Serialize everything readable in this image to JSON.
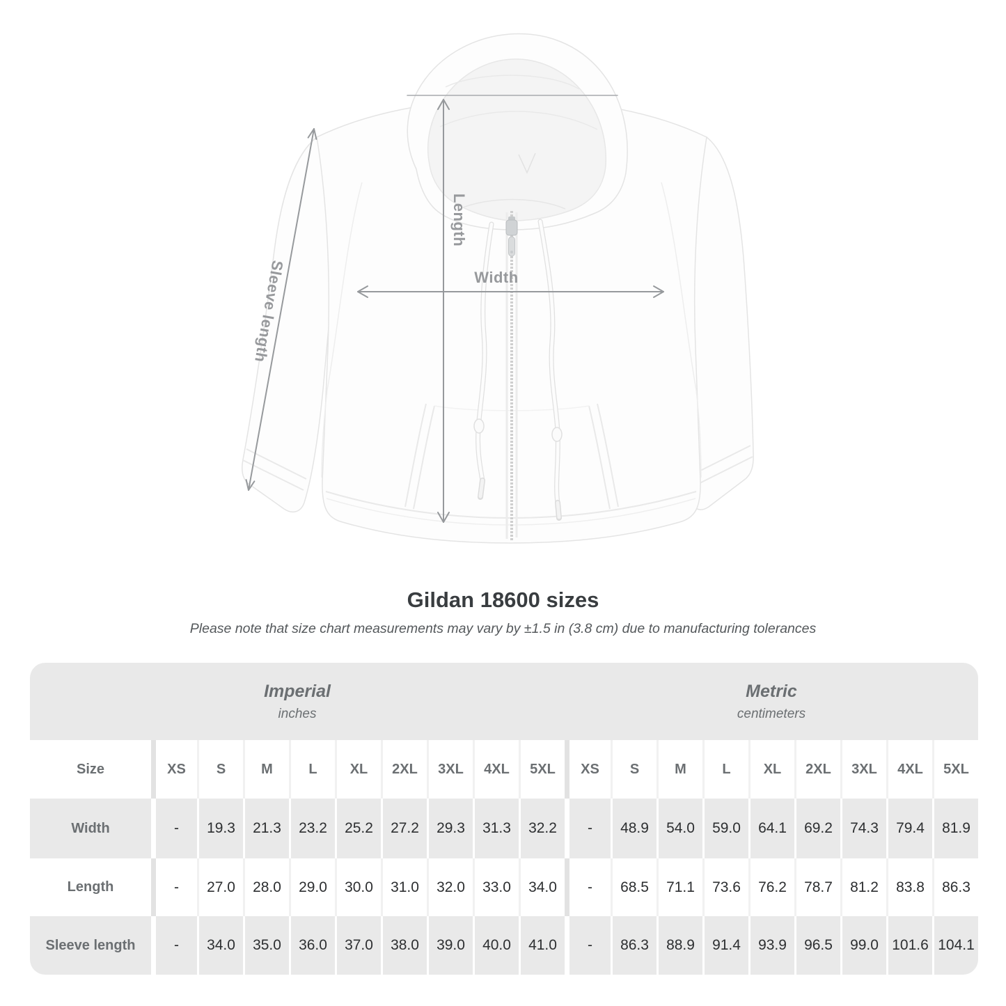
{
  "diagram": {
    "length_label": "Length",
    "width_label": "Width",
    "sleeve_label": "Sleeve length"
  },
  "heading": {
    "title": "Gildan 18600 sizes",
    "note": "Please note that size chart measurements may vary by ±1.5 in (3.8 cm) due to manufacturing tolerances"
  },
  "table": {
    "size_col_header": "Size",
    "sections": [
      {
        "name": "Imperial",
        "unit": "inches"
      },
      {
        "name": "Metric",
        "unit": "centimeters"
      }
    ],
    "sizes": [
      "XS",
      "S",
      "M",
      "L",
      "XL",
      "2XL",
      "3XL",
      "4XL",
      "5XL"
    ],
    "rows": [
      {
        "label": "Width",
        "imperial": [
          "-",
          "19.3",
          "21.3",
          "23.2",
          "25.2",
          "27.2",
          "29.3",
          "31.3",
          "32.2"
        ],
        "metric": [
          "-",
          "48.9",
          "54.0",
          "59.0",
          "64.1",
          "69.2",
          "74.3",
          "79.4",
          "81.9"
        ]
      },
      {
        "label": "Length",
        "imperial": [
          "-",
          "27.0",
          "28.0",
          "29.0",
          "30.0",
          "31.0",
          "32.0",
          "33.0",
          "34.0"
        ],
        "metric": [
          "-",
          "68.5",
          "71.1",
          "73.6",
          "76.2",
          "78.7",
          "81.2",
          "83.8",
          "86.3"
        ]
      },
      {
        "label": "Sleeve length",
        "imperial": [
          "-",
          "34.0",
          "35.0",
          "36.0",
          "37.0",
          "38.0",
          "39.0",
          "40.0",
          "41.0"
        ],
        "metric": [
          "-",
          "86.3",
          "88.9",
          "91.4",
          "93.9",
          "96.5",
          "99.0",
          "101.6",
          "104.1"
        ]
      }
    ]
  },
  "chart_data": {
    "type": "table",
    "title": "Gildan 18600 sizes",
    "note": "Please note that size chart measurements may vary by ±1.5 in (3.8 cm) due to manufacturing tolerances",
    "sections": [
      "Imperial (inches)",
      "Metric (centimeters)"
    ],
    "columns": [
      "XS",
      "S",
      "M",
      "L",
      "XL",
      "2XL",
      "3XL",
      "4XL",
      "5XL"
    ],
    "rows": [
      {
        "measurement": "Width",
        "imperial_in": [
          null,
          19.3,
          21.3,
          23.2,
          25.2,
          27.2,
          29.3,
          31.3,
          32.2
        ],
        "metric_cm": [
          null,
          48.9,
          54.0,
          59.0,
          64.1,
          69.2,
          74.3,
          79.4,
          81.9
        ]
      },
      {
        "measurement": "Length",
        "imperial_in": [
          null,
          27.0,
          28.0,
          29.0,
          30.0,
          31.0,
          32.0,
          33.0,
          34.0
        ],
        "metric_cm": [
          null,
          68.5,
          71.1,
          73.6,
          76.2,
          78.7,
          81.2,
          83.8,
          86.3
        ]
      },
      {
        "measurement": "Sleeve length",
        "imperial_in": [
          null,
          34.0,
          35.0,
          36.0,
          37.0,
          38.0,
          39.0,
          40.0,
          41.0
        ],
        "metric_cm": [
          null,
          86.3,
          88.9,
          91.4,
          93.9,
          96.5,
          99.0,
          101.6,
          104.1
        ]
      }
    ],
    "colors": {
      "band_gray": "#e9e9e9",
      "label_gray": "#6b6f72",
      "value_text": "#2d2f31",
      "arrow_gray": "#97999c"
    }
  }
}
